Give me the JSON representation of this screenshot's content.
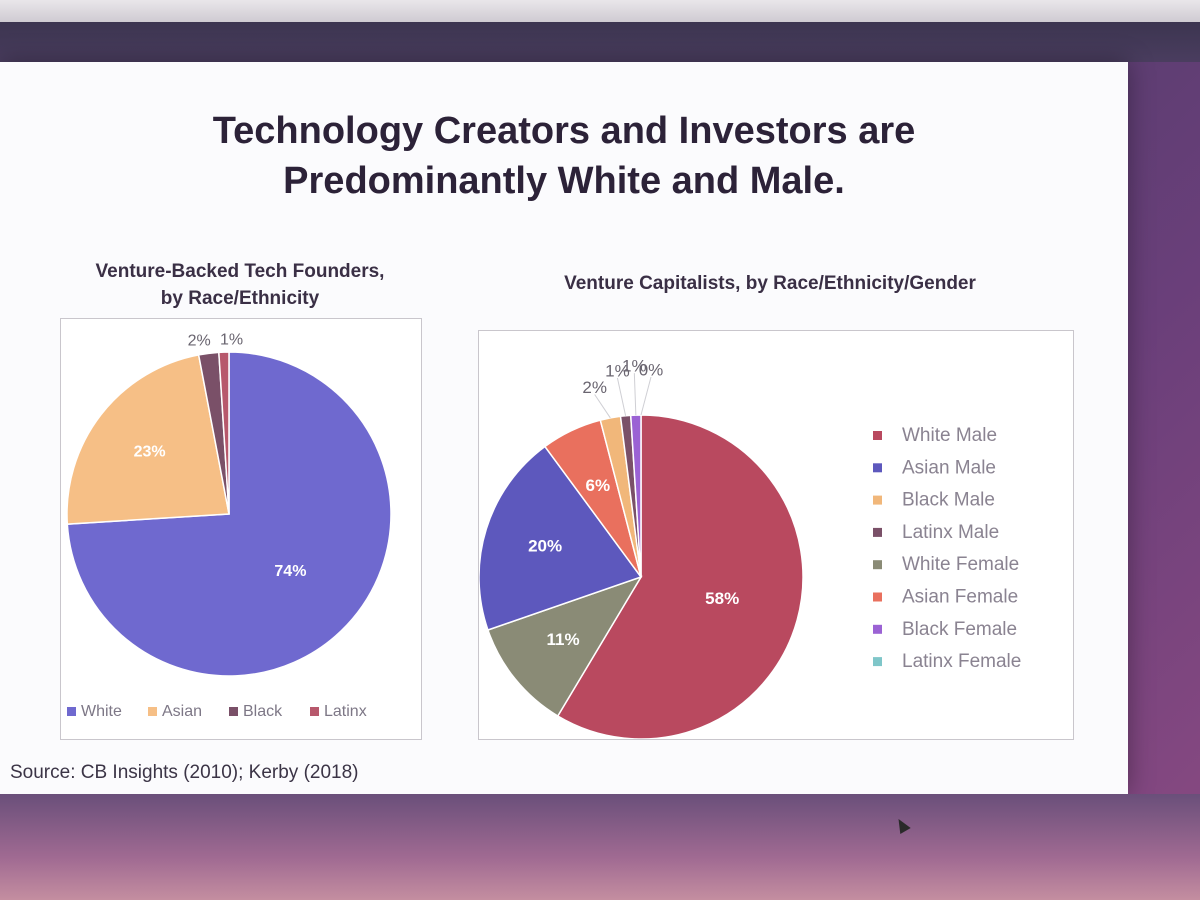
{
  "slide": {
    "title_line1": "Technology Creators and Investors are",
    "title_line2": "Predominantly White and Male.",
    "source": "Source: CB Insights (2010); Kerby (2018)"
  },
  "chart_data": [
    {
      "type": "pie",
      "title_line1": "Venture-Backed Tech Founders,",
      "title_line2": "by Race/Ethnicity",
      "legend_position": "bottom",
      "slices": [
        {
          "label": "White",
          "value": 74,
          "display": "74%",
          "color": "#6f69cf"
        },
        {
          "label": "Asian",
          "value": 23,
          "display": "23%",
          "color": "#f6bf86"
        },
        {
          "label": "Black",
          "value": 2,
          "display": "2%",
          "color": "#7a5068"
        },
        {
          "label": "Latinx",
          "value": 1,
          "display": "1%",
          "color": "#b7586c"
        }
      ]
    },
    {
      "type": "pie",
      "title": "Venture Capitalists, by Race/Ethnicity/Gender",
      "legend_position": "right",
      "slices": [
        {
          "label": "White Male",
          "value": 58,
          "display": "58%",
          "color": "#b9495f"
        },
        {
          "label": "White Female",
          "value": 11,
          "display": "11%",
          "color": "#8a8b76"
        },
        {
          "label": "Asian Male",
          "value": 20,
          "display": "20%",
          "color": "#5d58bd"
        },
        {
          "label": "Asian Female",
          "value": 6,
          "display": "6%",
          "color": "#e9705e"
        },
        {
          "label": "Black Male",
          "value": 2,
          "display": "2%",
          "color": "#f1b77a"
        },
        {
          "label": "Latinx Male",
          "value": 1,
          "display": "1%",
          "color": "#7a5068"
        },
        {
          "label": "Black Female",
          "value": 1,
          "display": "1%",
          "color": "#9b62d4"
        },
        {
          "label": "Latinx Female",
          "value": 0,
          "display": "0%",
          "color": "#7fc6c9"
        }
      ],
      "legend_order": [
        "White Male",
        "Asian Male",
        "Black Male",
        "Latinx Male",
        "White Female",
        "Asian Female",
        "Black Female",
        "Latinx Female"
      ]
    }
  ]
}
